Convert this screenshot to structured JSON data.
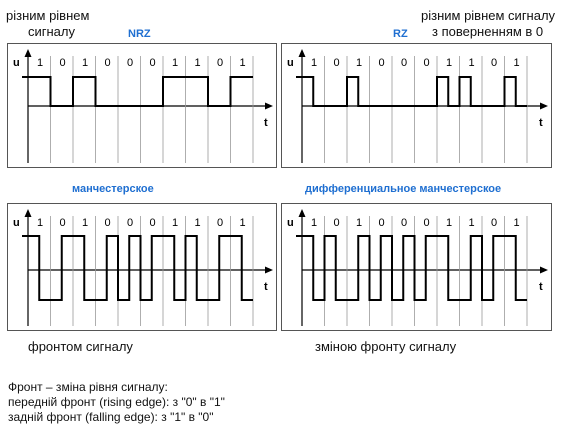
{
  "captions": {
    "top_left": [
      "різним рівнем",
      "сигналу"
    ],
    "top_right": [
      "різним рівнем сигналу",
      "з поверненням в 0"
    ],
    "bottom_left": "фронтом сигналу",
    "bottom_right": "зміною фронту сигналу"
  },
  "panels": [
    {
      "id": "nrz",
      "title": "NRZ",
      "y_label": "u",
      "t_label": "t",
      "bits": [
        "1",
        "0",
        "1",
        "0",
        "0",
        "0",
        "1",
        "1",
        "0",
        "1"
      ]
    },
    {
      "id": "rz",
      "title": "RZ",
      "y_label": "u",
      "t_label": "t",
      "bits": [
        "1",
        "0",
        "1",
        "0",
        "0",
        "0",
        "1",
        "1",
        "0",
        "1"
      ]
    },
    {
      "id": "manchester",
      "title": "манчестерское",
      "y_label": "u",
      "t_label": "t",
      "bits": [
        "1",
        "0",
        "1",
        "0",
        "0",
        "0",
        "1",
        "1",
        "0",
        "1"
      ]
    },
    {
      "id": "diff-manchester",
      "title": "дифференциальное манчестерское",
      "y_label": "u",
      "t_label": "t",
      "bits": [
        "1",
        "0",
        "1",
        "0",
        "0",
        "0",
        "1",
        "1",
        "0",
        "1"
      ]
    }
  ],
  "notes": [
    "Фронт – зміна рівня сигналу:",
    "передній фронт (rising edge): з \"0\" в \"1\"",
    "задній фронт (falling edge): з \"1\" в \"0\""
  ]
}
